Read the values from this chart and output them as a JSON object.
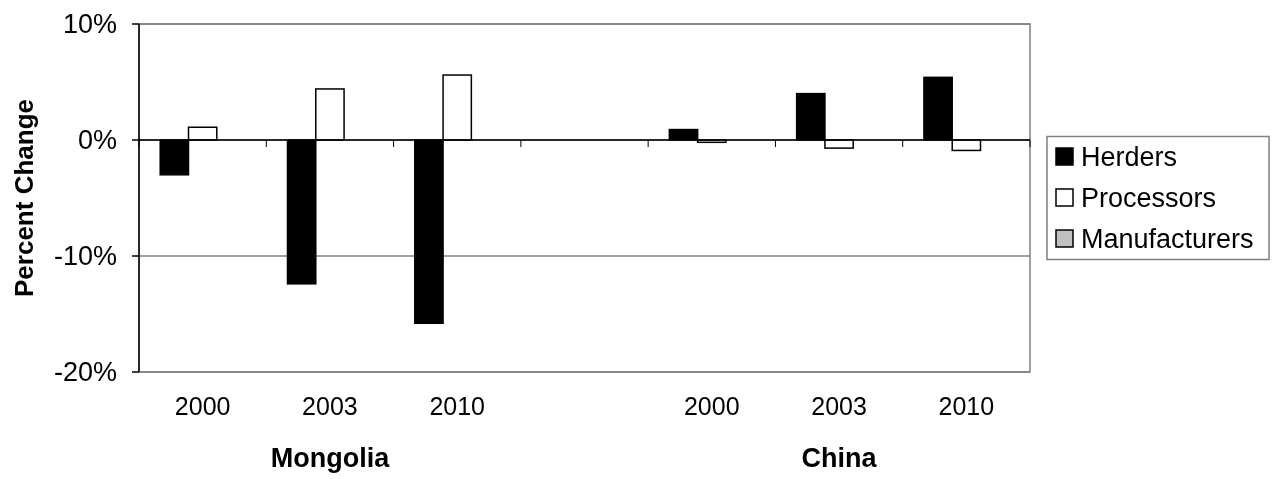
{
  "chart_data": {
    "type": "bar",
    "ylabel": "Percent Change",
    "categories": [
      "2000",
      "2003",
      "2010",
      null,
      "2000",
      "2003",
      "2010"
    ],
    "series": [
      {
        "name": "Herders",
        "color": "#000000",
        "values": [
          -3.0,
          -12.4,
          -15.8,
          null,
          0.9,
          4.0,
          5.4
        ]
      },
      {
        "name": "Processors",
        "color": "#ffffff",
        "values": [
          1.1,
          4.4,
          5.6,
          null,
          -0.2,
          -0.7,
          -0.9
        ]
      },
      {
        "name": "Manufacturers",
        "color": "#c0c0c0",
        "values": [
          null,
          null,
          null,
          null,
          null,
          null,
          null
        ]
      }
    ],
    "ylim": [
      -20,
      10
    ],
    "yticks": [
      {
        "value": -20,
        "label": "-20%"
      },
      {
        "value": -10,
        "label": "-10%"
      },
      {
        "value": 0,
        "label": "0%"
      },
      {
        "value": 10,
        "label": "10%"
      }
    ],
    "grid": "y",
    "legend": "right",
    "annotations": [
      "Mongolia",
      "China"
    ]
  }
}
